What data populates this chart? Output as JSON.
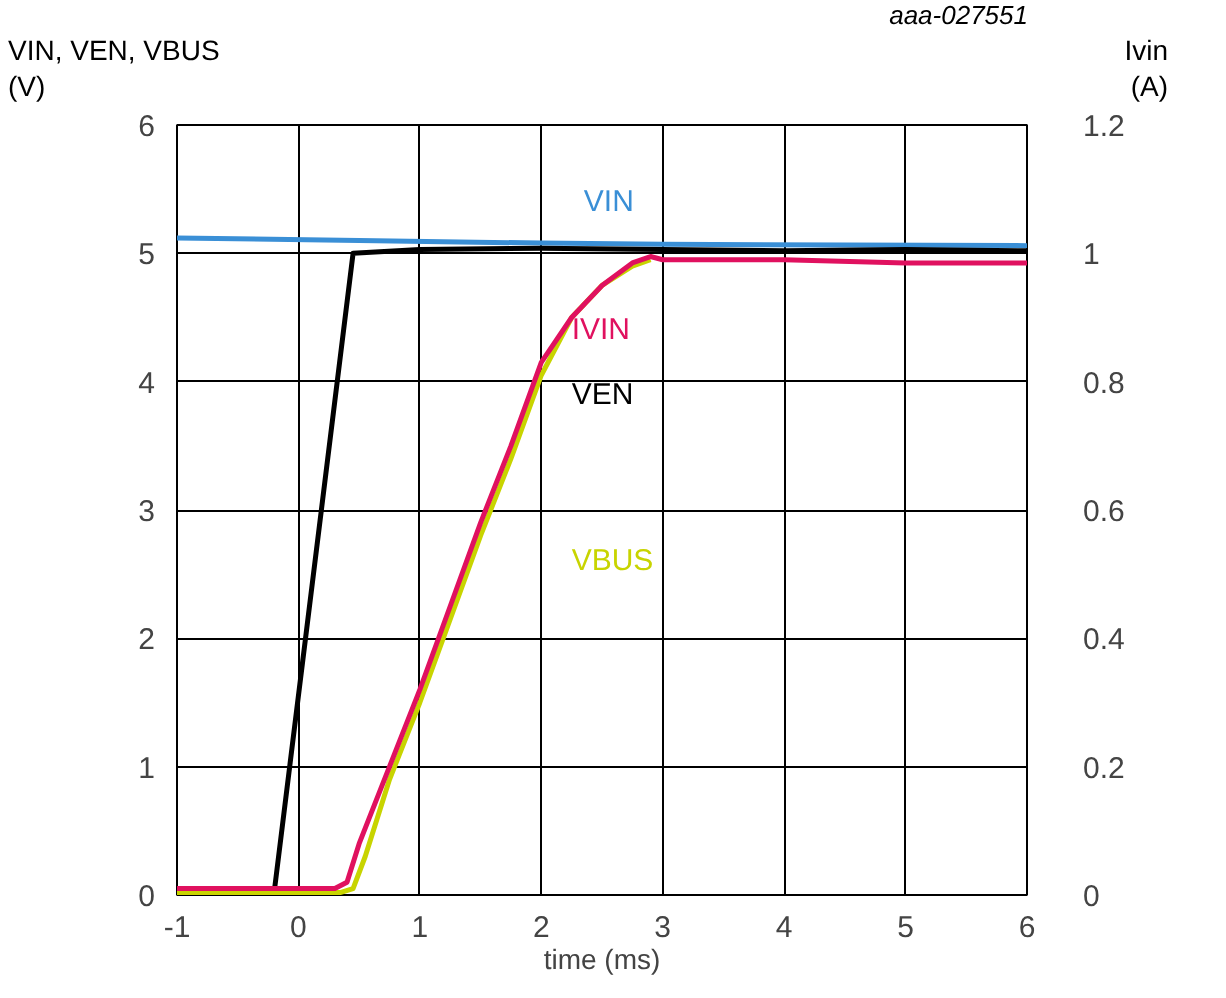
{
  "chart_data": {
    "type": "line",
    "xlabel": "time (ms)",
    "ylabel": "VIN, VEN, VBUS\n(V)",
    "y2label": "Ivin\n(A)",
    "annotations": [
      "aaa-027551"
    ],
    "xlim": [
      -1,
      6
    ],
    "xticks": [
      -1,
      0,
      1,
      2,
      3,
      4,
      5,
      6
    ],
    "ylim": [
      0,
      6
    ],
    "yticks": [
      0,
      1,
      2,
      3,
      4,
      5,
      6
    ],
    "y2lim": [
      0,
      1.2
    ],
    "y2ticks": [
      0,
      0.2,
      0.4,
      0.6,
      0.8,
      1,
      1.2
    ],
    "grid": true,
    "legend": false,
    "marker": "none",
    "line_style": "solid",
    "series": [
      {
        "name": "VIN",
        "color": "#3a8fd6",
        "x": [
          -1,
          0.5,
          2,
          3,
          6
        ],
        "values": [
          5.12,
          5.1,
          5.08,
          5.07,
          5.06
        ]
      },
      {
        "name": "VEN",
        "color": "#000000",
        "x": [
          -1,
          -0.2,
          0.45,
          1,
          2,
          3,
          4,
          5,
          6
        ],
        "values": [
          0.02,
          0.02,
          5.0,
          5.03,
          5.04,
          5.03,
          5.02,
          5.03,
          5.02
        ]
      },
      {
        "name": "VBUS",
        "color": "#c8d400",
        "x": [
          -1,
          0.35,
          0.45,
          0.55,
          0.75,
          1,
          1.25,
          1.5,
          1.75,
          2,
          2.25,
          2.5,
          2.75,
          2.9
        ],
        "values": [
          0.02,
          0.02,
          0.05,
          0.3,
          0.9,
          1.5,
          2.15,
          2.8,
          3.4,
          4.05,
          4.5,
          4.75,
          4.9,
          4.95
        ]
      },
      {
        "name": "IVIN",
        "color": "#e0115f",
        "axis": "y2",
        "x": [
          -1,
          0.3,
          0.4,
          0.5,
          0.75,
          1,
          1.25,
          1.5,
          1.75,
          2,
          2.25,
          2.5,
          2.75,
          2.9,
          3,
          4,
          5,
          6
        ],
        "values": [
          0.01,
          0.01,
          0.02,
          0.08,
          0.2,
          0.32,
          0.45,
          0.58,
          0.7,
          0.83,
          0.9,
          0.95,
          0.985,
          0.995,
          0.99,
          0.99,
          0.985,
          0.985
        ]
      }
    ]
  }
}
